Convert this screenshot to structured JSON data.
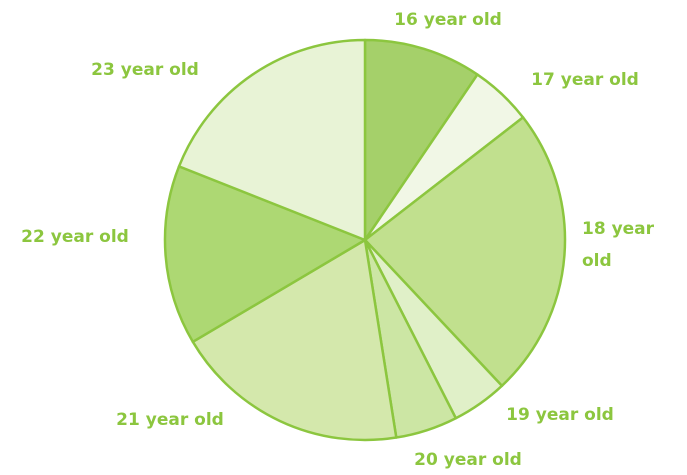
{
  "chart_data": {
    "type": "pie",
    "categories": [
      "16 year old",
      "17 year old",
      "18 year old",
      "19 year old",
      "20 year old",
      "21 year old",
      "22 year old",
      "23 year old"
    ],
    "values": [
      9.5,
      5,
      23.5,
      4.5,
      5,
      19,
      14.5,
      19
    ],
    "colors": [
      "#a5d06a",
      "#f1f7e6",
      "#c1e08e",
      "#e0f0c8",
      "#cce6a4",
      "#d4e8ac",
      "#add873",
      "#e8f3d6"
    ],
    "stroke": "#8cc63f",
    "label_color": "#8cc63f"
  }
}
